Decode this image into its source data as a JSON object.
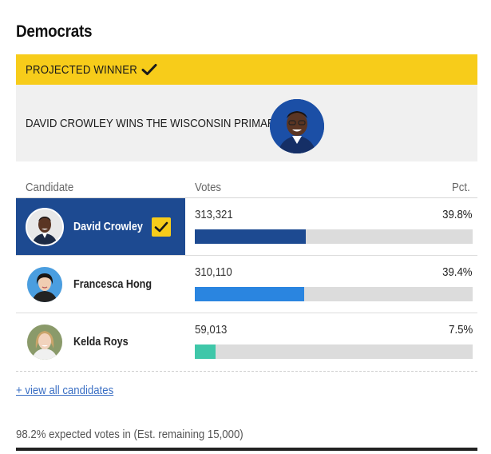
{
  "section": {
    "title": "Democrats"
  },
  "projection": {
    "banner_label": "PROJECTED WINNER",
    "banner_icon": "check-icon",
    "headline": "DAVID CROWLEY WINS THE WISCONSIN PRIMARY",
    "winner_photo": "winner-portrait",
    "accent_color": "#f7cc1a"
  },
  "table": {
    "headers": {
      "candidate": "Candidate",
      "votes": "Votes",
      "pct": "Pct."
    },
    "rows": [
      {
        "name": "David Crowley",
        "votes": "313,321",
        "pct": "39.8%",
        "share": 0.398,
        "bar_color": "#1d4a91",
        "leading": true,
        "winner_check": true
      },
      {
        "name": "Francesca Hong",
        "votes": "310,110",
        "pct": "39.4%",
        "share": 0.394,
        "bar_color": "#2a85e0",
        "leading": false,
        "winner_check": false
      },
      {
        "name": "Kelda Roys",
        "votes": "59,013",
        "pct": "7.5%",
        "share": 0.075,
        "bar_color": "#3fc7a9",
        "leading": false,
        "winner_check": false
      }
    ]
  },
  "footer": {
    "view_all_link": "+ view all candidates",
    "expected_votes": "98.2% expected votes in (Est. remaining 15,000)"
  }
}
